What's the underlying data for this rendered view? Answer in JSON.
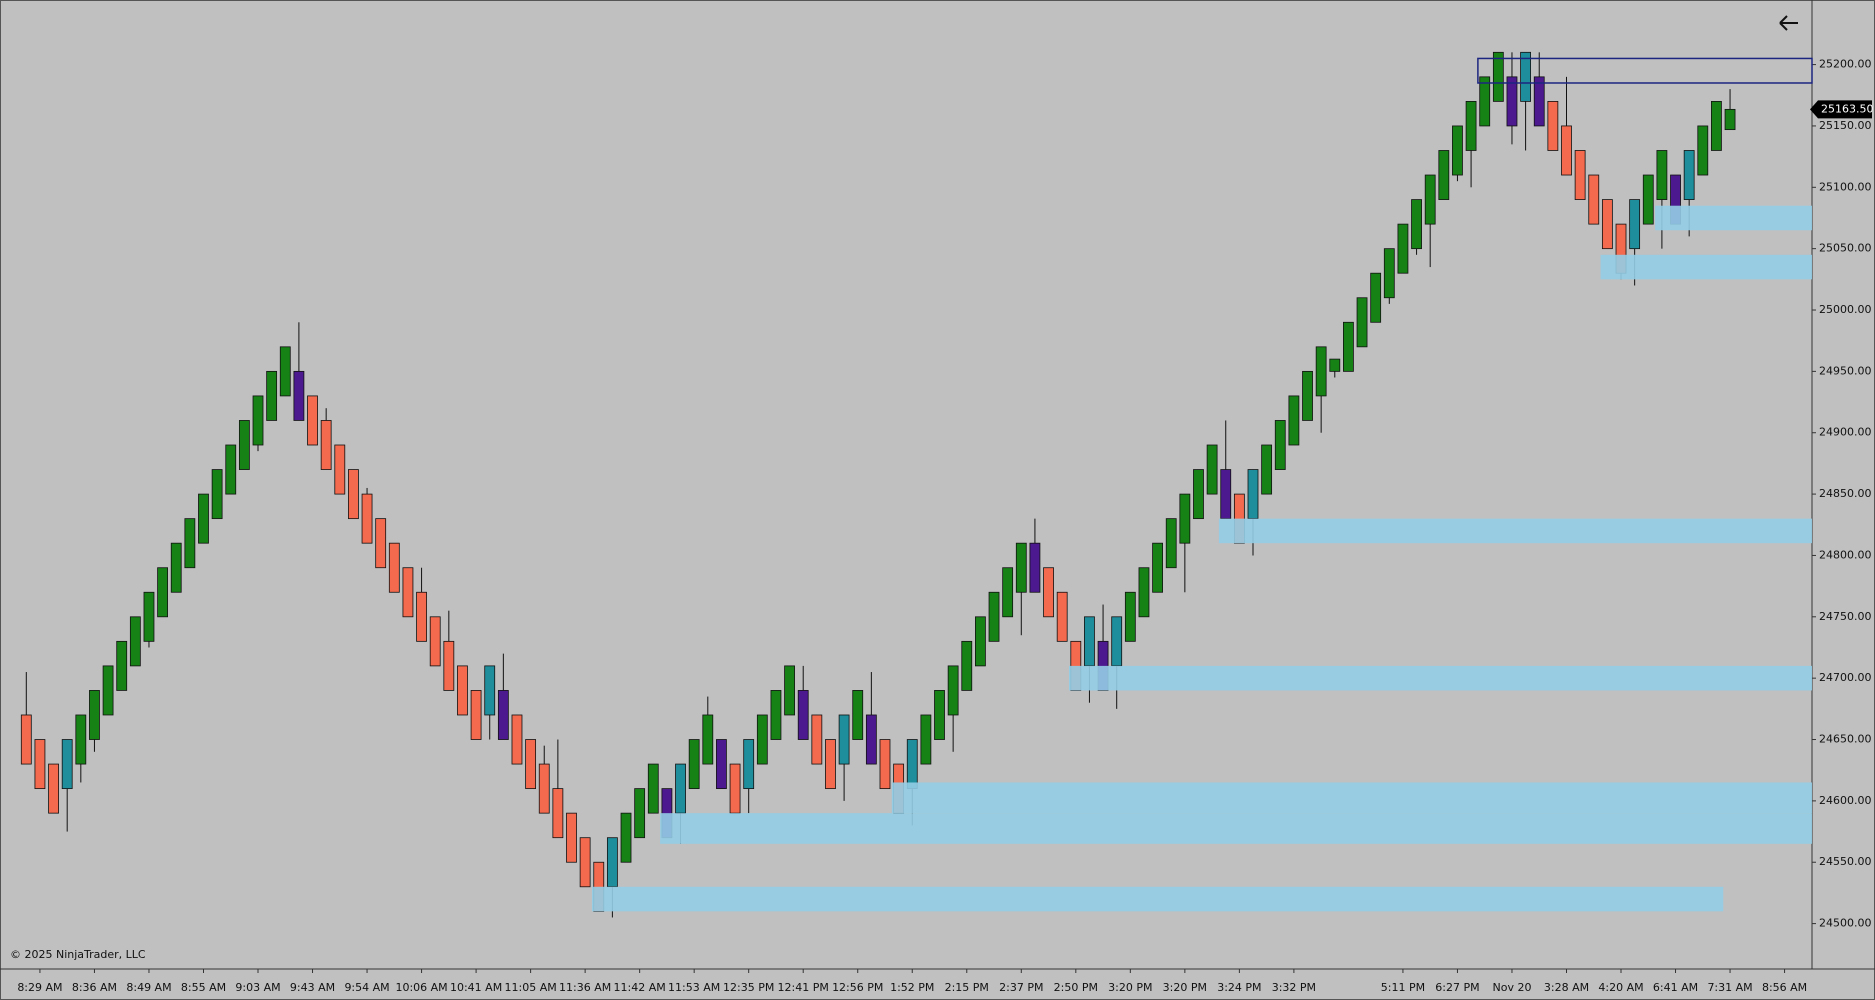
{
  "chart_data": {
    "type": "candlestick",
    "categories": [
      null,
      "8:29 AM",
      null,
      null,
      null,
      "8:36 AM",
      null,
      null,
      null,
      "8:49 AM",
      null,
      null,
      null,
      "8:55 AM",
      null,
      null,
      null,
      "9:03 AM",
      null,
      null,
      null,
      "9:43 AM",
      null,
      null,
      null,
      "9:54 AM",
      null,
      null,
      null,
      "10:06 AM",
      null,
      null,
      null,
      "10:41 AM",
      null,
      null,
      null,
      "11:05 AM",
      null,
      null,
      null,
      "11:36 AM",
      null,
      null,
      null,
      "11:42 AM",
      null,
      null,
      null,
      "11:53 AM",
      null,
      null,
      null,
      "12:35 PM",
      null,
      null,
      null,
      "12:41 PM",
      null,
      null,
      null,
      "12:56 PM",
      null,
      null,
      null,
      "1:52 PM",
      null,
      null,
      null,
      "2:15 PM",
      null,
      null,
      null,
      "2:37 PM",
      null,
      null,
      null,
      "2:50 PM",
      null,
      null,
      null,
      "3:20 PM",
      null,
      null,
      null,
      "3:20 PM",
      null,
      null,
      null,
      "3:24 PM",
      null,
      null,
      null,
      "3:32 PM",
      null,
      null,
      null,
      null,
      null,
      null,
      null,
      "5:11 PM",
      null,
      null,
      null,
      "6:27 PM",
      null,
      null,
      null,
      "Nov 20",
      null,
      null,
      null,
      "3:28 AM",
      null,
      null,
      null,
      "4:20 AM",
      null,
      null,
      null,
      "6:41 AM",
      null,
      null,
      null,
      "7:31 AM",
      null,
      null,
      null,
      "8:56 AM"
    ],
    "open": [
      24670,
      24650,
      24630,
      24610,
      24630,
      24650,
      24670,
      24690,
      24710,
      24730,
      24750,
      24770,
      24790,
      24810,
      24830,
      24850,
      24870,
      24890,
      24910,
      24930,
      24950,
      24930,
      24910,
      24890,
      24870,
      24850,
      24830,
      24810,
      24790,
      24770,
      24750,
      24730,
      24710,
      24690,
      24670,
      24690,
      24670,
      24650,
      24630,
      24610,
      24590,
      24570,
      24550,
      24530,
      24550,
      24570,
      24590,
      24610,
      24590,
      24610,
      24630,
      24650,
      24630,
      24610,
      24630,
      24650,
      24670,
      24690,
      24670,
      24650,
      24630,
      24650,
      24670,
      24650,
      24630,
      24610,
      24630,
      24650,
      24670,
      24690,
      24710,
      24730,
      24750,
      24770,
      24810,
      24790,
      24770,
      24730,
      24710,
      24730,
      24710,
      24730,
      24750,
      24770,
      24790,
      24810,
      24830,
      24850,
      24870,
      24850,
      24830,
      24850,
      24870,
      24890,
      24910,
      24930,
      24950,
      24950,
      24970,
      24990,
      25010,
      25030,
      25050,
      25070,
      25090,
      25110,
      25130,
      25150,
      25170,
      25190,
      25170,
      25190,
      25170,
      25150,
      25130,
      25110,
      25090,
      25070,
      25050,
      25070,
      25090,
      25110,
      25090,
      25110,
      25130,
      25147,
      null,
      null,
      null,
      null
    ],
    "high": [
      24705,
      24650,
      24630,
      24650,
      24670,
      24690,
      24710,
      24730,
      24750,
      24770,
      24790,
      24810,
      24830,
      24850,
      24870,
      24890,
      24910,
      24930,
      24950,
      24970,
      24990,
      24930,
      24920,
      24890,
      24870,
      24855,
      24830,
      24810,
      24790,
      24790,
      24750,
      24755,
      24710,
      24690,
      24710,
      24720,
      24670,
      24650,
      24645,
      24650,
      24590,
      24570,
      24550,
      24570,
      24590,
      24610,
      24630,
      24610,
      24630,
      24650,
      24685,
      24650,
      24630,
      24650,
      24670,
      24690,
      24710,
      24710,
      24670,
      24650,
      24670,
      24690,
      24705,
      24650,
      24630,
      24650,
      24670,
      24690,
      24710,
      24730,
      24750,
      24770,
      24790,
      24810,
      24830,
      24790,
      24770,
      24730,
      24750,
      24760,
      24750,
      24770,
      24790,
      24810,
      24830,
      24850,
      24870,
      24890,
      24910,
      24850,
      24870,
      24890,
      24910,
      24930,
      24950,
      24970,
      24960,
      24990,
      25010,
      25030,
      25050,
      25070,
      25090,
      25110,
      25130,
      25150,
      25170,
      25190,
      25210,
      25210,
      25210,
      25210,
      25170,
      25190,
      25130,
      25110,
      25090,
      25070,
      25090,
      25110,
      25130,
      25110,
      25130,
      25150,
      25170,
      25180,
      null,
      null,
      null,
      null
    ],
    "low": [
      24630,
      24610,
      24590,
      24575,
      24615,
      24640,
      24670,
      24690,
      24710,
      24725,
      24750,
      24770,
      24790,
      24810,
      24830,
      24850,
      24870,
      24885,
      24910,
      24930,
      24910,
      24890,
      24870,
      24850,
      24830,
      24810,
      24790,
      24770,
      24750,
      24730,
      24710,
      24690,
      24670,
      24650,
      24650,
      24650,
      24630,
      24610,
      24590,
      24570,
      24550,
      24530,
      24510,
      24505,
      24550,
      24570,
      24590,
      24570,
      24565,
      24610,
      24630,
      24610,
      24590,
      24590,
      24630,
      24650,
      24670,
      24650,
      24630,
      24610,
      24600,
      24650,
      24630,
      24610,
      24590,
      24580,
      24630,
      24650,
      24640,
      24690,
      24710,
      24730,
      24750,
      24735,
      24770,
      24750,
      24730,
      24690,
      24680,
      24690,
      24675,
      24730,
      24750,
      24770,
      24790,
      24770,
      24830,
      24850,
      24830,
      24810,
      24800,
      24850,
      24870,
      24890,
      24910,
      24900,
      24945,
      24950,
      24970,
      24990,
      25005,
      25030,
      25045,
      25035,
      25090,
      25105,
      25100,
      25150,
      25170,
      25135,
      25130,
      25150,
      25130,
      25110,
      25090,
      25070,
      25050,
      25025,
      25020,
      25070,
      25050,
      25070,
      25060,
      25110,
      25130,
      25147,
      null,
      null,
      null,
      null
    ],
    "close": [
      24630,
      24610,
      24590,
      24650,
      24670,
      24690,
      24710,
      24730,
      24750,
      24770,
      24790,
      24810,
      24830,
      24850,
      24870,
      24890,
      24910,
      24930,
      24950,
      24970,
      24910,
      24890,
      24870,
      24850,
      24830,
      24810,
      24790,
      24770,
      24750,
      24730,
      24710,
      24690,
      24670,
      24650,
      24710,
      24650,
      24630,
      24610,
      24590,
      24570,
      24550,
      24530,
      24510,
      24570,
      24590,
      24610,
      24630,
      24570,
      24630,
      24650,
      24670,
      24610,
      24590,
      24650,
      24670,
      24690,
      24710,
      24650,
      24630,
      24610,
      24670,
      24690,
      24630,
      24610,
      24590,
      24650,
      24670,
      24690,
      24710,
      24730,
      24750,
      24770,
      24790,
      24810,
      24770,
      24750,
      24730,
      24690,
      24750,
      24690,
      24750,
      24770,
      24790,
      24810,
      24830,
      24850,
      24870,
      24890,
      24830,
      24810,
      24870,
      24890,
      24910,
      24930,
      24950,
      24970,
      24960,
      24990,
      25010,
      25030,
      25050,
      25070,
      25090,
      25110,
      25130,
      25150,
      25170,
      25190,
      25210,
      25150,
      25210,
      25150,
      25130,
      25110,
      25090,
      25070,
      25050,
      25030,
      25090,
      25110,
      25130,
      25070,
      25130,
      25150,
      25170,
      25163.5,
      null,
      null,
      null,
      null
    ],
    "colors": {
      "up": "#168216",
      "down": "#f36a4e",
      "up_reversal": "#1e8e9c",
      "down_reversal": "#4c1a8e"
    },
    "ylim": [
      24463,
      25251
    ],
    "yticks": [
      {
        "value": 24500,
        "label": "24500.00"
      },
      {
        "value": 24550,
        "label": "24550.00"
      },
      {
        "value": 24600,
        "label": "24600.00"
      },
      {
        "value": 24650,
        "label": "24650.00"
      },
      {
        "value": 24700,
        "label": "24700.00"
      },
      {
        "value": 24750,
        "label": "24750.00"
      },
      {
        "value": 24800,
        "label": "24800.00"
      },
      {
        "value": 24850,
        "label": "24850.00"
      },
      {
        "value": 24900,
        "label": "24900.00"
      },
      {
        "value": 24950,
        "label": "24950.00"
      },
      {
        "value": 25000,
        "label": "25000.00"
      },
      {
        "value": 25050,
        "label": "25050.00"
      },
      {
        "value": 25100,
        "label": "25100.00"
      },
      {
        "value": 25150,
        "label": "25150.00"
      },
      {
        "value": 25200,
        "label": "25200.00"
      }
    ],
    "zones": [
      {
        "low": 24510,
        "high": 24530,
        "start": 42,
        "end": 124
      },
      {
        "low": 24565,
        "high": 24590,
        "start": 47
      },
      {
        "low": 24590,
        "high": 24615,
        "start": 64
      },
      {
        "low": 24690,
        "high": 24710,
        "start": 77
      },
      {
        "low": 24810,
        "high": 24830,
        "start": 88
      },
      {
        "low": 25025,
        "high": 25045,
        "start": 116
      },
      {
        "low": 25065,
        "high": 25085,
        "start": 120
      }
    ],
    "zone_color": "#94cde6",
    "box": {
      "low": 25185,
      "high": 25205,
      "start": 107,
      "color": "#1c2580"
    },
    "last_price": {
      "value": 25163.5,
      "label": "25163.50"
    },
    "background": "#c0c0c0",
    "grid": false
  },
  "footer": "© 2025 NinjaTrader, LLC"
}
